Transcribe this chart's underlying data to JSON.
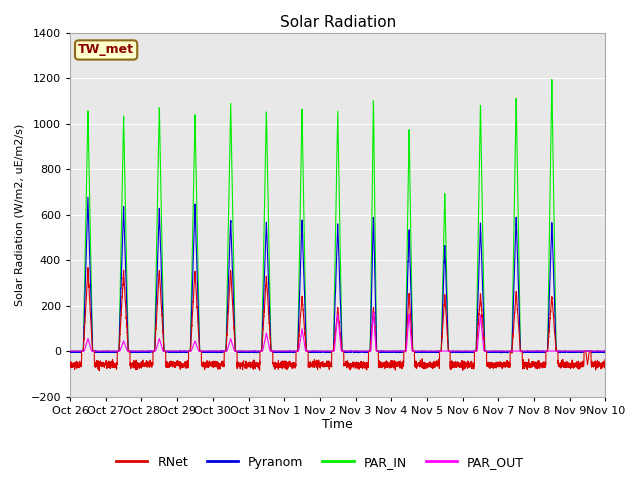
{
  "title": "Solar Radiation",
  "ylabel": "Solar Radiation (W/m2, uE/m2/s)",
  "xlabel": "Time",
  "station_label": "TW_met",
  "ylim": [
    -200,
    1400
  ],
  "yticks": [
    -200,
    0,
    200,
    400,
    600,
    800,
    1000,
    1200,
    1400
  ],
  "x_tick_labels": [
    "Oct 26",
    "Oct 27",
    "Oct 28",
    "Oct 29",
    "Oct 30",
    "Oct 31",
    "Nov 1",
    "Nov 2",
    "Nov 3",
    "Nov 4",
    "Nov 5",
    "Nov 6",
    "Nov 7",
    "Nov 8",
    "Nov 9",
    "Nov 10"
  ],
  "colors": {
    "RNet": "#dd0000",
    "Pyranom": "#0000dd",
    "PAR_IN": "#00ee00",
    "PAR_OUT": "#ff00ff"
  },
  "plot_bg": "#e8e8e8",
  "n_days": 15
}
